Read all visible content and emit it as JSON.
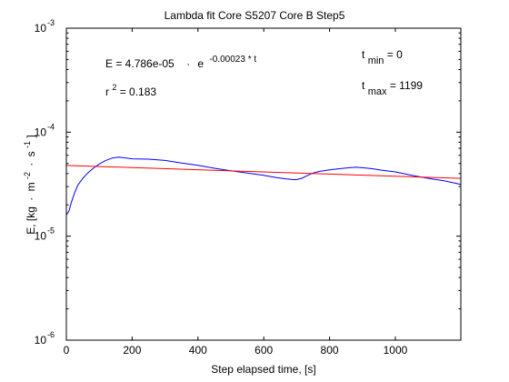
{
  "chart_data": {
    "type": "line",
    "title": "Lambda fit  Core S5207 Core B  Step5",
    "xlabel": "Step elapsed time, [s]",
    "ylabel_parts": [
      "E, [kg",
      "·",
      "m",
      "-2",
      "·",
      "s",
      "-1",
      "]"
    ],
    "xlim": [
      0,
      1199
    ],
    "ylim": [
      1e-06,
      0.001
    ],
    "yscale": "log",
    "grid": false,
    "x_ticks": [
      0,
      200,
      400,
      600,
      800,
      1000
    ],
    "x_tick_labels": [
      "0",
      "200",
      "400",
      "600",
      "800",
      "1000"
    ],
    "y_ticks": [
      {
        "value": 1e-06,
        "base": "10",
        "exp": "-6"
      },
      {
        "value": 1e-05,
        "base": "10",
        "exp": "-5"
      },
      {
        "value": 0.0001,
        "base": "10",
        "exp": "-4"
      },
      {
        "value": 0.001,
        "base": "10",
        "exp": "-3"
      }
    ],
    "annotations": {
      "equation_left": "E = 4.786e-05",
      "equation_dot": "·",
      "equation_e": "e",
      "equation_exp": "-0.00023 * t",
      "r2_base": "r",
      "r2_exp": "2",
      "r2_value": " = 0.183",
      "tmin_base": "t",
      "tmin_sub": "min",
      "tmin_value": " = 0",
      "tmax_base": "t",
      "tmax_sub": "max",
      "tmax_value": " = 1199"
    },
    "series": [
      {
        "color": "#0000ff",
        "x": [
          0,
          8,
          15,
          25,
          35,
          50,
          65,
          80,
          100,
          120,
          140,
          160,
          200,
          250,
          300,
          350,
          400,
          450,
          500,
          550,
          600,
          640,
          670,
          690,
          700,
          715,
          730,
          750,
          770,
          800,
          830,
          860,
          880,
          900,
          930,
          960,
          1000,
          1050,
          1100,
          1150,
          1199
        ],
        "y": [
          1.6e-05,
          1.75e-05,
          2.1e-05,
          2.6e-05,
          3.1e-05,
          3.6e-05,
          4.05e-05,
          4.45e-05,
          4.95e-05,
          5.35e-05,
          5.65e-05,
          5.75e-05,
          5.55e-05,
          5.5e-05,
          5.35e-05,
          5.05e-05,
          4.8e-05,
          4.5e-05,
          4.25e-05,
          4.05e-05,
          3.85e-05,
          3.65e-05,
          3.55e-05,
          3.5e-05,
          3.5e-05,
          3.6e-05,
          3.8e-05,
          4.05e-05,
          4.2e-05,
          4.35e-05,
          4.45e-05,
          4.55e-05,
          4.6e-05,
          4.55e-05,
          4.45e-05,
          4.3e-05,
          4.15e-05,
          3.85e-05,
          3.6e-05,
          3.4e-05,
          3.15e-05
        ]
      },
      {
        "color": "#ff0000",
        "x": [
          0,
          1199
        ],
        "y": [
          4.786e-05,
          3.6e-05
        ]
      }
    ]
  }
}
